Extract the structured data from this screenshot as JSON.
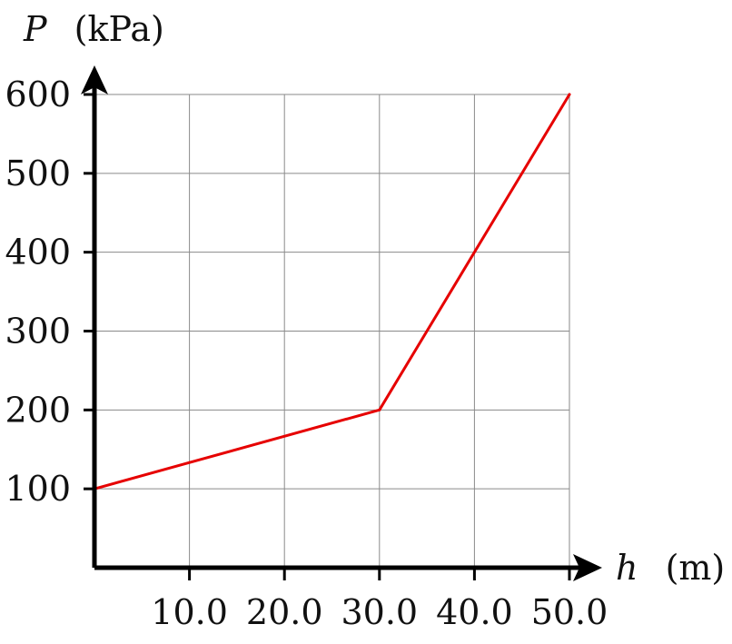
{
  "chart_data": {
    "type": "line",
    "title": "",
    "xlabel": {
      "symbol": "h",
      "unit": "(m)"
    },
    "ylabel": {
      "symbol": "P",
      "unit": "(kPa)"
    },
    "xlim": [
      0,
      50
    ],
    "ylim": [
      0,
      600
    ],
    "x_ticks": [
      10,
      20,
      30,
      40,
      50
    ],
    "x_tick_labels": [
      "10.0",
      "20.0",
      "30.0",
      "40.0",
      "50.0"
    ],
    "y_ticks": [
      100,
      200,
      300,
      400,
      500,
      600
    ],
    "y_tick_labels": [
      "100",
      "200",
      "300",
      "400",
      "500",
      "600"
    ],
    "grid": true,
    "legend": "none",
    "series": [
      {
        "color": "#e60000",
        "x": [
          0,
          30,
          50
        ],
        "y": [
          100,
          200,
          600
        ]
      }
    ]
  },
  "colors": {
    "axis": "#000000",
    "grid": "#8a8a8a",
    "series": "#e60000"
  }
}
